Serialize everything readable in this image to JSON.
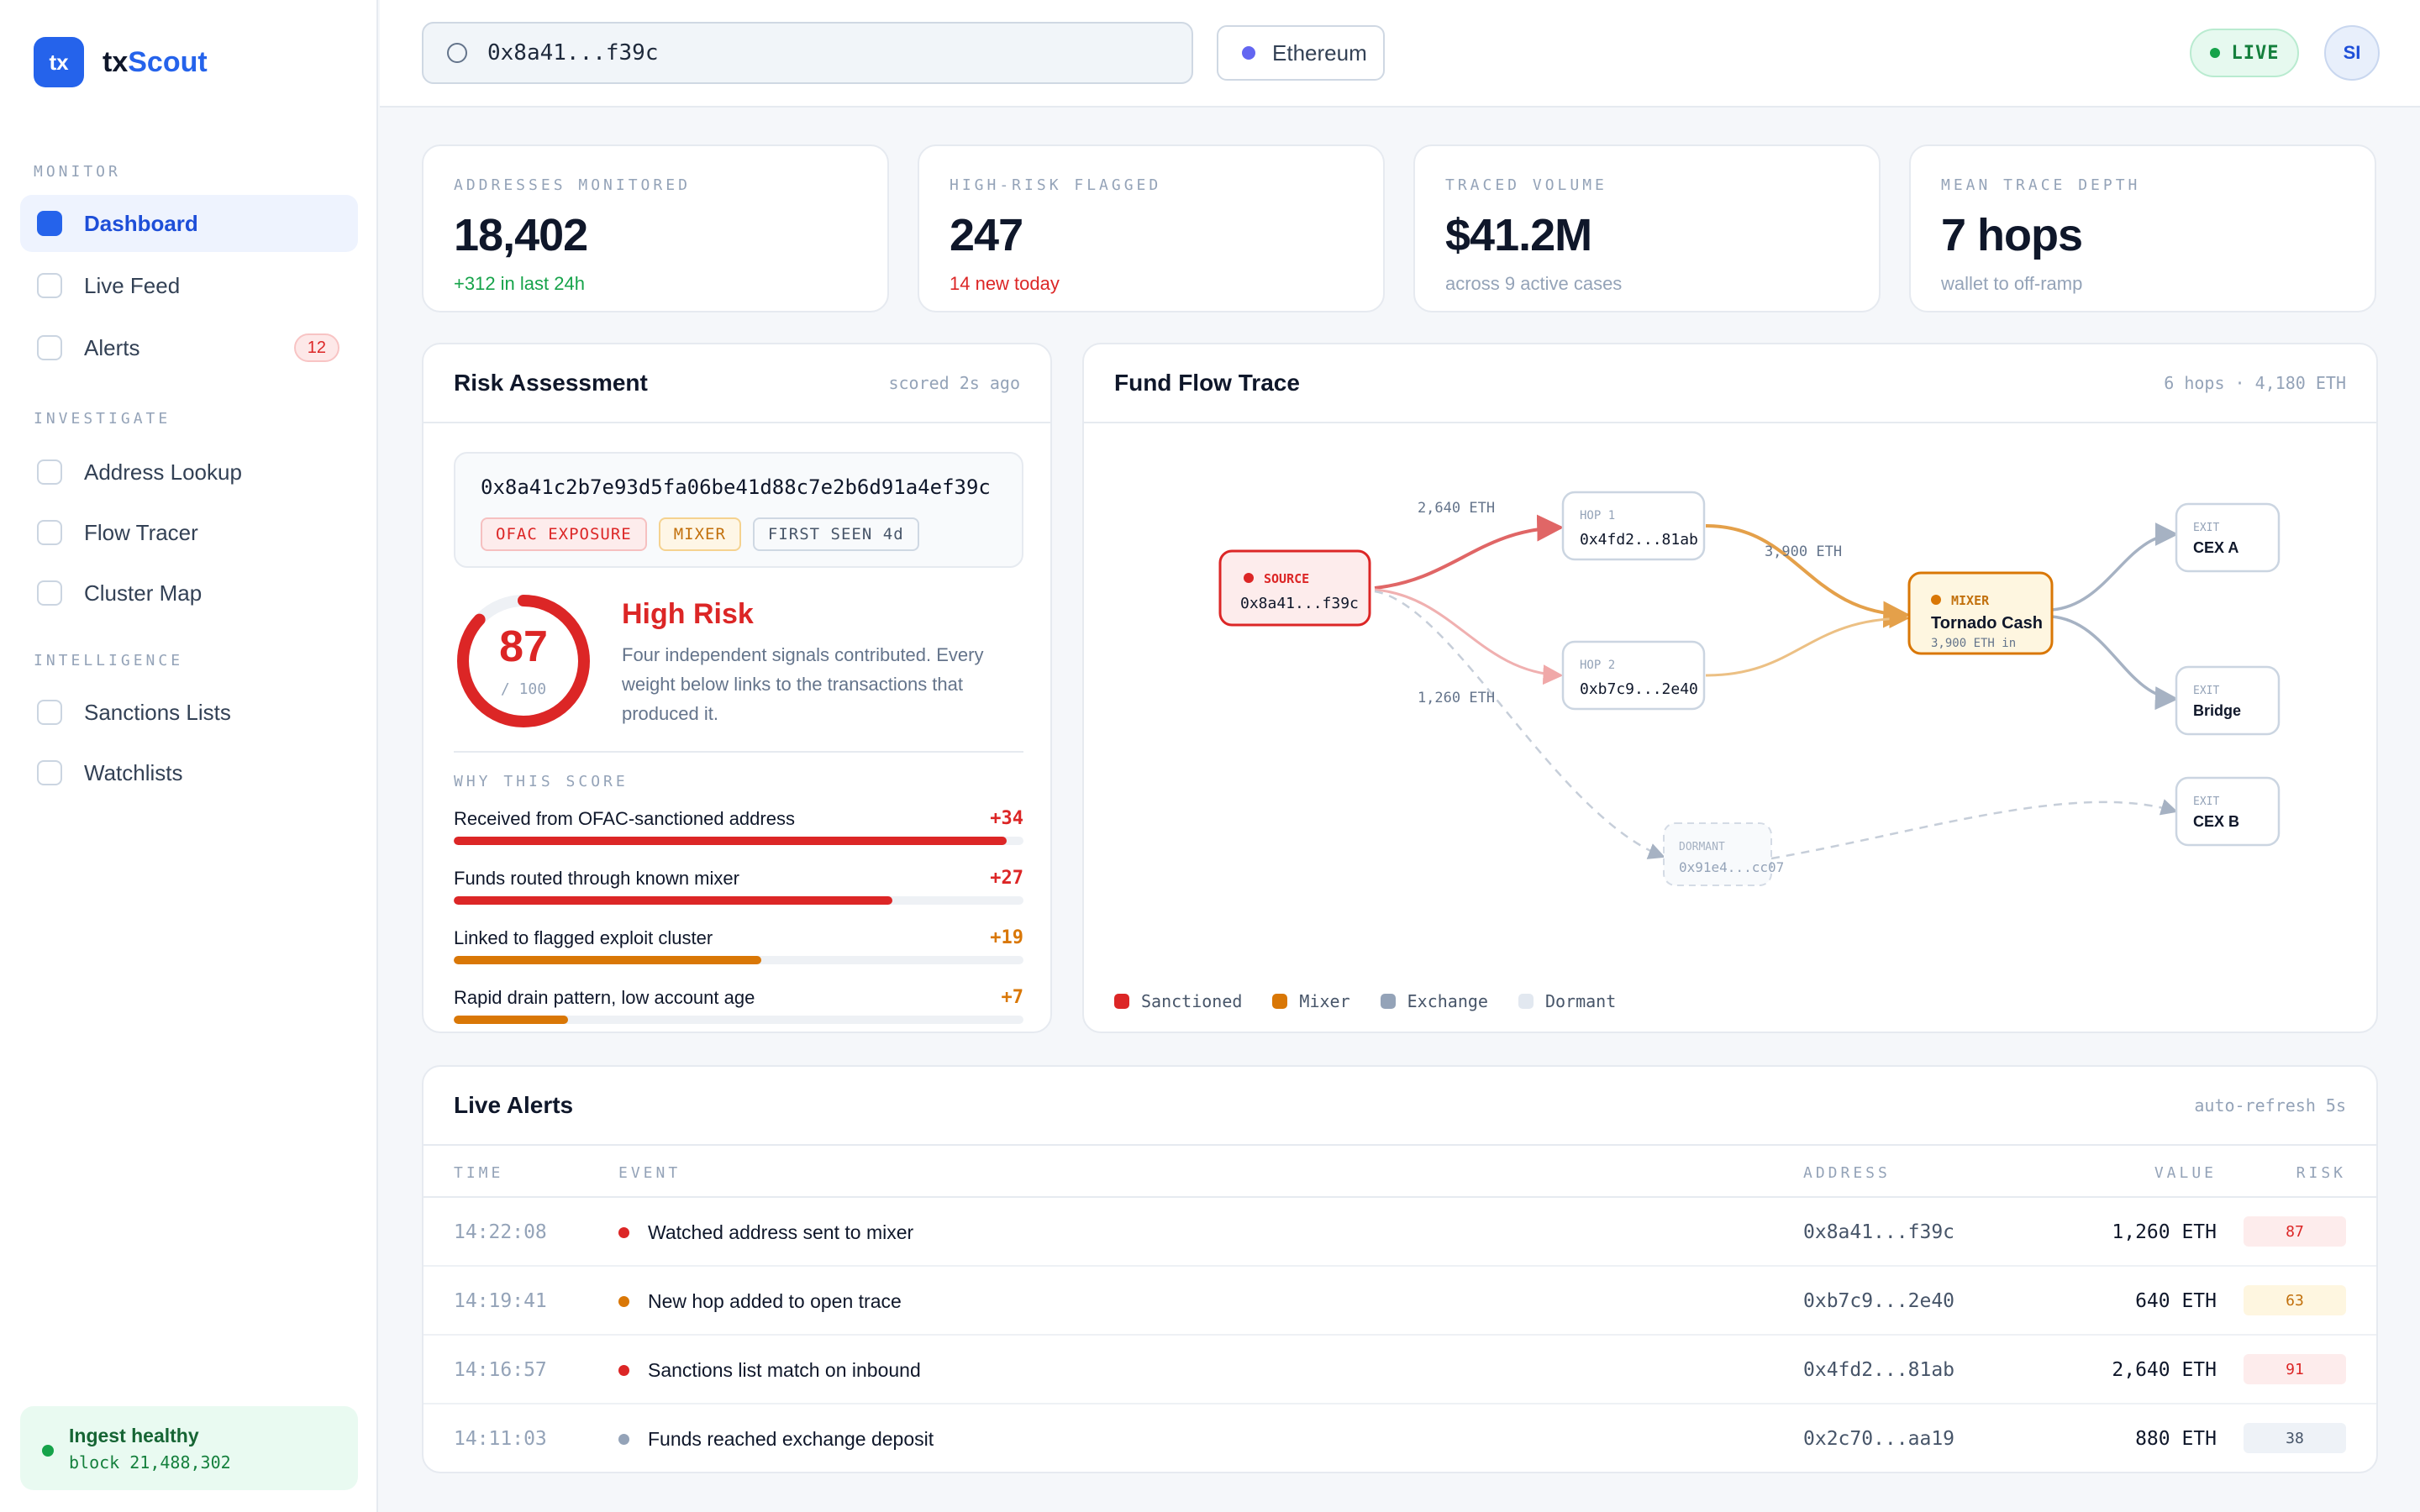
{
  "brand": {
    "logo_text": "tx",
    "name_prefix": "tx",
    "name_accent": "Scout",
    "accent_color": "#2563eb"
  },
  "sidebar": {
    "sections": [
      {
        "title": "MONITOR",
        "items": [
          {
            "label": "Dashboard",
            "active": true
          },
          {
            "label": "Live Feed"
          },
          {
            "label": "Alerts",
            "badge": "12"
          }
        ]
      },
      {
        "title": "INVESTIGATE",
        "items": [
          {
            "label": "Address Lookup"
          },
          {
            "label": "Flow Tracer"
          },
          {
            "label": "Cluster Map"
          }
        ]
      },
      {
        "title": "INTELLIGENCE",
        "items": [
          {
            "label": "Sanctions Lists"
          },
          {
            "label": "Watchlists"
          }
        ]
      }
    ],
    "ingest": {
      "title": "Ingest healthy",
      "block": "block 21,488,302"
    }
  },
  "topbar": {
    "search_value": "0x8a41...f39c",
    "chain": "Ethereum",
    "live": "LIVE",
    "avatar": "SI"
  },
  "stats": [
    {
      "label": "ADDRESSES MONITORED",
      "value": "18,402",
      "sub": "+312 in last 24h",
      "tone": "green"
    },
    {
      "label": "HIGH-RISK FLAGGED",
      "value": "247",
      "sub": "14 new today",
      "tone": "red"
    },
    {
      "label": "TRACED VOLUME",
      "value": "$41.2M",
      "sub": "across 9 active cases",
      "tone": "muted"
    },
    {
      "label": "MEAN TRACE DEPTH",
      "value": "7 hops",
      "sub": "wallet to off-ramp",
      "tone": "muted"
    }
  ],
  "risk": {
    "title": "Risk Assessment",
    "meta": "scored 2s ago",
    "address": "0x8a41c2b7e93d5fa06be41d88c7e2b6d91a4ef39c",
    "tags": [
      {
        "label": "OFAC EXPOSURE",
        "tone": "red"
      },
      {
        "label": "MIXER",
        "tone": "amber"
      },
      {
        "label": "FIRST SEEN 4d",
        "tone": "gray"
      }
    ],
    "score": "87",
    "score_max": "/ 100",
    "score_fraction": 0.87,
    "level": "High Risk",
    "description": "Four independent signals contributed. Every weight below links to the transactions that produced it.",
    "why_label": "WHY THIS SCORE",
    "factors": [
      {
        "label": "Received from OFAC-sanctioned address",
        "score": "+34",
        "fraction": 0.97,
        "color": "#dc2626"
      },
      {
        "label": "Funds routed through known mixer",
        "score": "+27",
        "fraction": 0.77,
        "color": "#dc2626"
      },
      {
        "label": "Linked to flagged exploit cluster",
        "score": "+19",
        "fraction": 0.54,
        "color": "#d97706"
      },
      {
        "label": "Rapid drain pattern, low account age",
        "score": "+7",
        "fraction": 0.2,
        "color": "#d97706"
      }
    ]
  },
  "flow": {
    "title": "Fund Flow Trace",
    "meta": "6 hops · 4,180 ETH",
    "nodes": {
      "source": {
        "kind": "SOURCE",
        "address": "0x8a41...f39c"
      },
      "hop1": {
        "kind": "HOP 1",
        "address": "0x4fd2...81ab"
      },
      "hop2": {
        "kind": "HOP 2",
        "address": "0xb7c9...2e40"
      },
      "mixer": {
        "kind": "MIXER",
        "name": "Tornado Cash",
        "sub": "3,900 ETH in"
      },
      "dormant": {
        "kind": "DORMANT",
        "address": "0x91e4...cc07"
      },
      "exit_a": {
        "kind": "EXIT",
        "name": "CEX A"
      },
      "exit_b": {
        "kind": "EXIT",
        "name": "Bridge"
      },
      "exit_c": {
        "kind": "EXIT",
        "name": "CEX B"
      }
    },
    "edge_labels": {
      "to_hop1": "2,640 ETH",
      "to_hop2": "1,260 ETH",
      "to_mixer": "3,900 ETH"
    },
    "legend": [
      {
        "label": "Sanctioned",
        "color": "#dc2626"
      },
      {
        "label": "Mixer",
        "color": "#d97706"
      },
      {
        "label": "Exchange",
        "color": "#94a3b8"
      },
      {
        "label": "Dormant",
        "color": "#e2e8f0"
      }
    ]
  },
  "alerts": {
    "title": "Live Alerts",
    "meta": "auto-refresh 5s",
    "columns": {
      "time": "TIME",
      "event": "EVENT",
      "address": "ADDRESS",
      "value": "VALUE",
      "risk": "RISK"
    },
    "rows": [
      {
        "time": "14:22:08",
        "event": "Watched address sent to mixer",
        "dot": "#dc2626",
        "address": "0x8a41...f39c",
        "value": "1,260 ETH",
        "risk": "87",
        "risk_bg": "#fdecec",
        "risk_fg": "#dc2626"
      },
      {
        "time": "14:19:41",
        "event": "New hop added to open trace",
        "dot": "#d97706",
        "address": "0xb7c9...2e40",
        "value": "640 ETH",
        "risk": "63",
        "risk_bg": "#fef6e0",
        "risk_fg": "#c2700c"
      },
      {
        "time": "14:16:57",
        "event": "Sanctions list match on inbound",
        "dot": "#dc2626",
        "address": "0x4fd2...81ab",
        "value": "2,640 ETH",
        "risk": "91",
        "risk_bg": "#fdecec",
        "risk_fg": "#dc2626"
      },
      {
        "time": "14:11:03",
        "event": "Funds reached exchange deposit",
        "dot": "#94a3b8",
        "address": "0x2c70...aa19",
        "value": "880 ETH",
        "risk": "38",
        "risk_bg": "#eef2f7",
        "risk_fg": "#475569"
      }
    ]
  }
}
